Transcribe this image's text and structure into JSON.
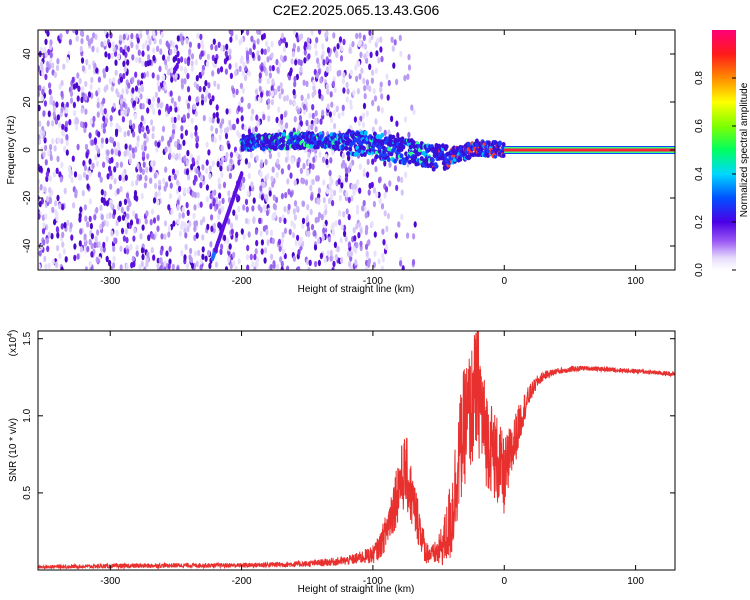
{
  "title": "C2E2.2025.065.13.43.G06",
  "colors": {
    "background": "#ffffff",
    "snr_line": "#e8312f",
    "frame": "#000000",
    "spectro_low": "#cdbcf6",
    "spectro_mid": "#5a18e0"
  },
  "chart_data": [
    {
      "type": "heatmap",
      "title": "C2E2.2025.065.13.43.G06",
      "xlabel": "Height of straight line (km)",
      "ylabel": "Frequency (Hz)",
      "xlim": [
        -355,
        130
      ],
      "ylim": [
        -50,
        50
      ],
      "xticks": [
        -300,
        -200,
        -100,
        0,
        100
      ],
      "xtick_labels": [
        "-300",
        "-200",
        "-100",
        "0",
        "100"
      ],
      "yticks": [
        -40,
        -20,
        0,
        20,
        40
      ],
      "ytick_labels": [
        "-40",
        "-20",
        "0",
        "20",
        "40"
      ],
      "colorbar": {
        "label": "Normalized spectral amplitude",
        "range": [
          0,
          1
        ],
        "ticks": [
          0.0,
          0.2,
          0.4,
          0.6,
          0.8
        ],
        "tick_labels": [
          "0.0",
          "0.2",
          "0.4",
          "0.6",
          "0.8"
        ],
        "colormap": "rainbow (white-violet-blue-cyan-green-yellow-orange-red-magenta)"
      },
      "features": [
        {
          "name": "noise",
          "x_range": [
            -355,
            -110
          ],
          "freq_range": [
            -50,
            50
          ],
          "amplitude": 0.05
        },
        {
          "name": "signal_track",
          "points": [
            [
              -200,
              3
            ],
            [
              -150,
              4
            ],
            [
              -110,
              3
            ],
            [
              -90,
              1
            ],
            [
              -70,
              -1
            ],
            [
              -55,
              -3
            ],
            [
              -45,
              -3
            ],
            [
              -30,
              -1
            ],
            [
              -20,
              1
            ],
            [
              0,
              0
            ]
          ],
          "amplitude": 0.3
        },
        {
          "name": "carrier_line",
          "x_range": [
            0,
            130
          ],
          "frequency": 0,
          "amplitude": 0.95
        },
        {
          "name": "diagonal_streak",
          "points": [
            [
              -222,
              -45
            ],
            [
              -200,
              -10
            ]
          ],
          "amplitude": 0.2
        }
      ]
    },
    {
      "type": "line",
      "xlabel": "Height of straight line (km)",
      "ylabel": "SNR (10 * v/v)",
      "y_multiplier": "(x10",
      "y_multiplier_exponent": "4",
      "xlim": [
        -355,
        130
      ],
      "ylim": [
        0,
        1.55
      ],
      "xticks": [
        -300,
        -200,
        -100,
        0,
        100
      ],
      "xtick_labels": [
        "-300",
        "-200",
        "-100",
        "0",
        "100"
      ],
      "yticks": [
        0.5,
        1.0,
        1.5
      ],
      "ytick_labels": [
        "0.5",
        "1.0",
        "1.5"
      ],
      "grid": false,
      "series": [
        {
          "x": [
            -355,
            -300,
            -250,
            -200,
            -150,
            -120,
            -110,
            -100,
            -95,
            -90,
            -85,
            -80,
            -75,
            -70,
            -65,
            -60,
            -55,
            -50,
            -45,
            -40,
            -35,
            -30,
            -25,
            -20,
            -15,
            -10,
            -5,
            0,
            5,
            10,
            15,
            20,
            25,
            30,
            40,
            50,
            60,
            80,
            100,
            130
          ],
          "y": [
            0.02,
            0.025,
            0.03,
            0.03,
            0.04,
            0.06,
            0.08,
            0.1,
            0.15,
            0.25,
            0.4,
            0.55,
            0.65,
            0.45,
            0.3,
            0.12,
            0.1,
            0.12,
            0.2,
            0.35,
            0.7,
            0.95,
            1.05,
            1.2,
            0.9,
            0.8,
            0.7,
            0.6,
            0.75,
            0.9,
            1.05,
            1.15,
            1.22,
            1.26,
            1.29,
            1.3,
            1.31,
            1.3,
            1.29,
            1.27
          ],
          "noise": [
            0.01,
            0.015,
            0.015,
            0.015,
            0.02,
            0.03,
            0.04,
            0.06,
            0.08,
            0.12,
            0.18,
            0.22,
            0.25,
            0.2,
            0.15,
            0.08,
            0.06,
            0.1,
            0.18,
            0.3,
            0.35,
            0.4,
            0.4,
            0.45,
            0.35,
            0.3,
            0.3,
            0.25,
            0.2,
            0.15,
            0.1,
            0.06,
            0.04,
            0.03,
            0.02,
            0.02,
            0.015,
            0.015,
            0.015,
            0.015
          ]
        }
      ]
    }
  ]
}
